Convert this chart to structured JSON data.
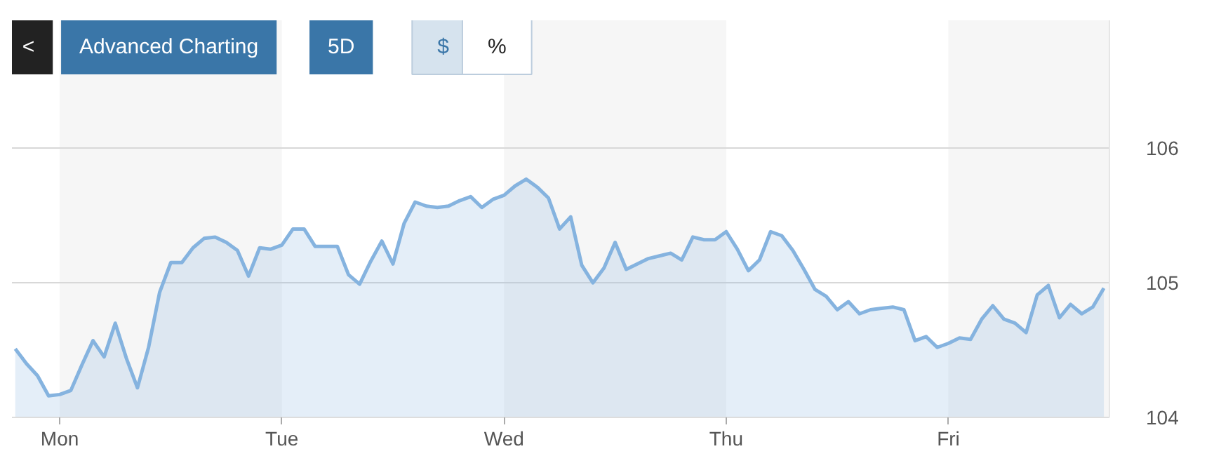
{
  "chart_data": {
    "type": "area",
    "annotations": [
      "<",
      "Advanced Charting",
      "5D",
      "$",
      "%"
    ],
    "categories": [
      null,
      null,
      null,
      null,
      "Mon",
      null,
      null,
      null,
      null,
      null,
      null,
      null,
      null,
      null,
      null,
      null,
      null,
      null,
      null,
      null,
      null,
      null,
      null,
      null,
      "Tue",
      null,
      null,
      null,
      null,
      null,
      null,
      null,
      null,
      null,
      null,
      null,
      null,
      null,
      null,
      null,
      null,
      null,
      null,
      null,
      "Wed",
      null,
      null,
      null,
      null,
      null,
      null,
      null,
      null,
      null,
      null,
      null,
      null,
      null,
      null,
      null,
      null,
      null,
      null,
      null,
      "Thu",
      null,
      null,
      null,
      null,
      null,
      null,
      null,
      null,
      null,
      null,
      null,
      null,
      null,
      null,
      null,
      null,
      null,
      null,
      null,
      "Fri",
      null,
      null,
      null,
      null,
      null,
      null,
      null,
      null,
      null,
      null,
      null,
      null,
      null,
      null
    ],
    "ylim": [
      104,
      106.95
    ],
    "yticks": [
      104,
      105,
      106
    ],
    "grid": "y",
    "series": [
      {
        "color": "#85b3df",
        "values": [
          104.51,
          104.4,
          104.31,
          104.16,
          104.17,
          104.2,
          104.39,
          104.57,
          104.45,
          104.7,
          104.44,
          104.22,
          104.52,
          104.93,
          105.15,
          105.15,
          105.26,
          105.33,
          105.34,
          105.3,
          105.24,
          105.05,
          105.26,
          105.25,
          105.28,
          105.4,
          105.4,
          105.27,
          105.27,
          105.27,
          105.06,
          104.99,
          105.16,
          105.31,
          105.14,
          105.44,
          105.6,
          105.57,
          105.56,
          105.57,
          105.61,
          105.64,
          105.56,
          105.62,
          105.65,
          105.72,
          105.77,
          105.71,
          105.63,
          105.4,
          105.49,
          105.13,
          105.0,
          105.11,
          105.3,
          105.1,
          105.14,
          105.18,
          105.2,
          105.22,
          105.17,
          105.34,
          105.32,
          105.32,
          105.38,
          105.25,
          105.09,
          105.17,
          105.38,
          105.35,
          105.24,
          105.1,
          104.95,
          104.9,
          104.8,
          104.86,
          104.77,
          104.8,
          104.81,
          104.82,
          104.8,
          104.57,
          104.6,
          104.52,
          104.55,
          104.59,
          104.58,
          104.73,
          104.83,
          104.73,
          104.7,
          104.63,
          104.91,
          104.98,
          104.74,
          104.84,
          104.77,
          104.82,
          104.96
        ]
      }
    ]
  }
}
